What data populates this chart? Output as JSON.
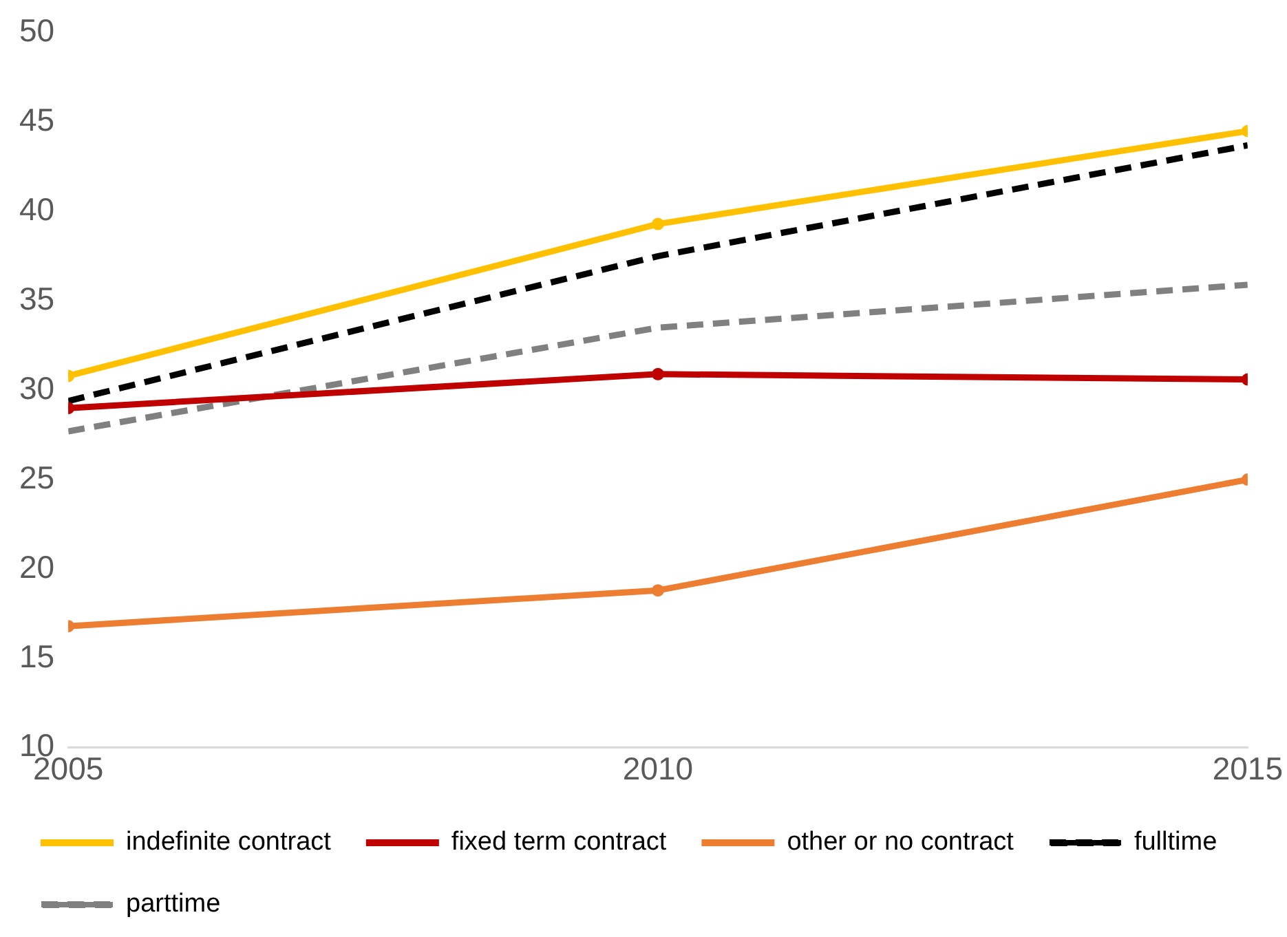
{
  "chart_data": {
    "type": "line",
    "x": [
      2005,
      2010,
      2015
    ],
    "xlim": [
      2005,
      2015
    ],
    "xticks": [
      2005,
      2010,
      2015
    ],
    "ylim": [
      10,
      50
    ],
    "yticks": [
      10,
      15,
      20,
      25,
      30,
      35,
      40,
      45,
      50
    ],
    "grid": false,
    "legend": "bottom",
    "series": [
      {
        "name": "indefinite contract",
        "color": "#ffc000",
        "values": [
          30.8,
          39.3,
          44.5
        ],
        "marker": "circle",
        "line_style": "solid"
      },
      {
        "name": "fixed term contract",
        "color": "#c00000",
        "values": [
          29.0,
          30.9,
          30.6
        ],
        "marker": "circle",
        "line_style": "solid"
      },
      {
        "name": "other or no contract",
        "color": "#ed7d31",
        "values": [
          16.8,
          18.8,
          25.0
        ],
        "marker": "circle",
        "line_style": "solid"
      },
      {
        "name": "fulltime",
        "color": "#000000",
        "values": [
          29.4,
          37.5,
          43.7
        ],
        "marker": "none",
        "line_style": "dashed"
      },
      {
        "name": "parttime",
        "color": "#808080",
        "values": [
          27.7,
          33.5,
          35.9
        ],
        "marker": "none",
        "line_style": "dashed"
      }
    ]
  }
}
